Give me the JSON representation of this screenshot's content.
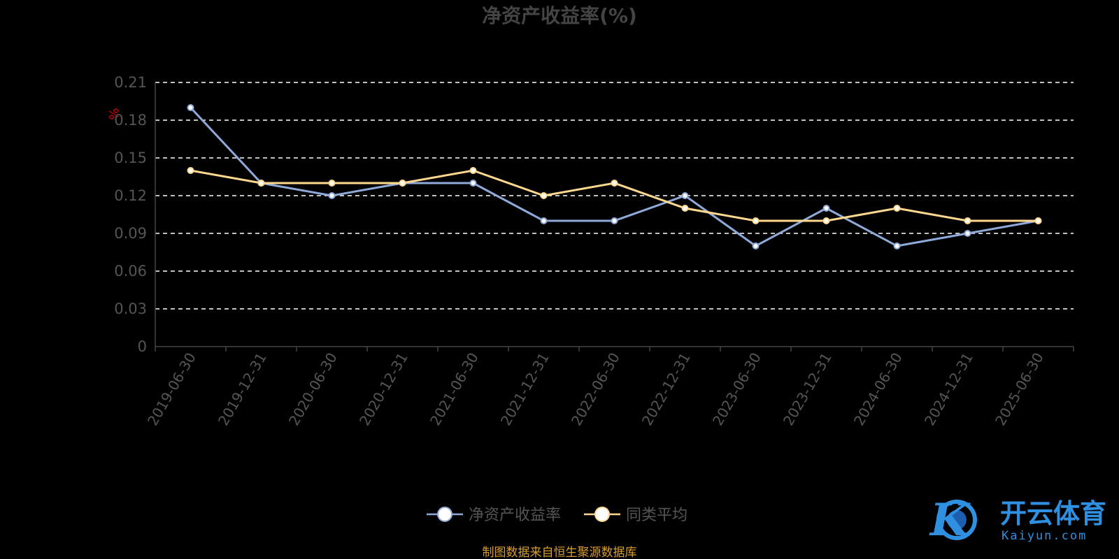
{
  "chart_data": {
    "type": "line",
    "title": "净资产收益率(%)",
    "unit_label": "%",
    "categories": [
      "2019-06-30",
      "2019-12-31",
      "2020-06-30",
      "2020-12-31",
      "2021-06-30",
      "2021-12-31",
      "2022-06-30",
      "2022-12-31",
      "2023-06-30",
      "2023-12-31",
      "2024-06-30",
      "2024-12-31",
      "2025-06-30"
    ],
    "ylim": [
      0,
      0.21
    ],
    "yticks": [
      "0",
      "0.03",
      "0.06",
      "0.09",
      "0.12",
      "0.15",
      "0.18",
      "0.21"
    ],
    "grid": true,
    "legend_position": "bottom",
    "series": [
      {
        "name": "净资产收益率",
        "color": "#8fa9d9",
        "values": [
          0.19,
          0.13,
          0.12,
          0.13,
          0.13,
          0.1,
          0.1,
          0.12,
          0.08,
          0.11,
          0.08,
          0.09,
          0.1
        ]
      },
      {
        "name": "同类平均",
        "color": "#ffd88f",
        "values": [
          0.14,
          0.13,
          0.13,
          0.13,
          0.14,
          0.12,
          0.13,
          0.11,
          0.1,
          0.1,
          0.11,
          0.1,
          0.1
        ]
      }
    ]
  },
  "footer": "制图数据来自恒生聚源数据库",
  "logo": {
    "name": "开云体育",
    "sub": "Kaiyun.com",
    "mark": "K"
  }
}
